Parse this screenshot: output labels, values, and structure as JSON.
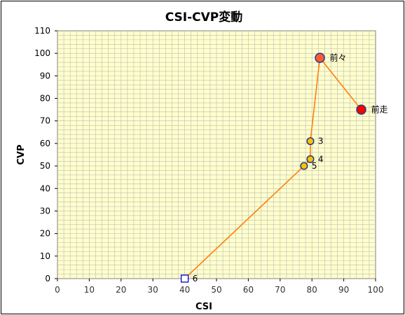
{
  "chart_data": {
    "type": "scatter",
    "title": "CSI-CVP変動",
    "xlabel": "CSI",
    "ylabel": "CVP",
    "xlim": [
      0,
      100
    ],
    "ylim": [
      0,
      110
    ],
    "xticks": [
      "0",
      "10",
      "20",
      "30",
      "40",
      "50",
      "60",
      "70",
      "80",
      "90",
      "100"
    ],
    "yticks": [
      "0",
      "10",
      "20",
      "30",
      "40",
      "50",
      "60",
      "70",
      "80",
      "90",
      "100",
      "110"
    ],
    "grid": true,
    "points": [
      {
        "label": "6",
        "x": 40,
        "y": 0,
        "marker": "square",
        "fill": "#ffffff",
        "stroke": "#0000cc"
      },
      {
        "label": "5",
        "x": 77.5,
        "y": 50,
        "marker": "circle",
        "fill": "#ffc000",
        "stroke": "#1f3c88"
      },
      {
        "label": "4",
        "x": 79.5,
        "y": 53,
        "marker": "circle",
        "fill": "#ffc000",
        "stroke": "#1f3c88"
      },
      {
        "label": "3",
        "x": 79.5,
        "y": 61,
        "marker": "circle",
        "fill": "#ffc000",
        "stroke": "#1f3c88"
      },
      {
        "label": "前々",
        "x": 82.5,
        "y": 98,
        "marker": "circle-large",
        "fill": "#ff5a3a",
        "stroke": "#1f3c88"
      },
      {
        "label": "前走",
        "x": 95.5,
        "y": 75,
        "marker": "circle-large",
        "fill": "#ff0000",
        "stroke": "#1f3c88"
      }
    ],
    "line_color": "#ff7f0e",
    "plot_background": "#ffffcc",
    "grid_color": "#bbbbbb"
  }
}
